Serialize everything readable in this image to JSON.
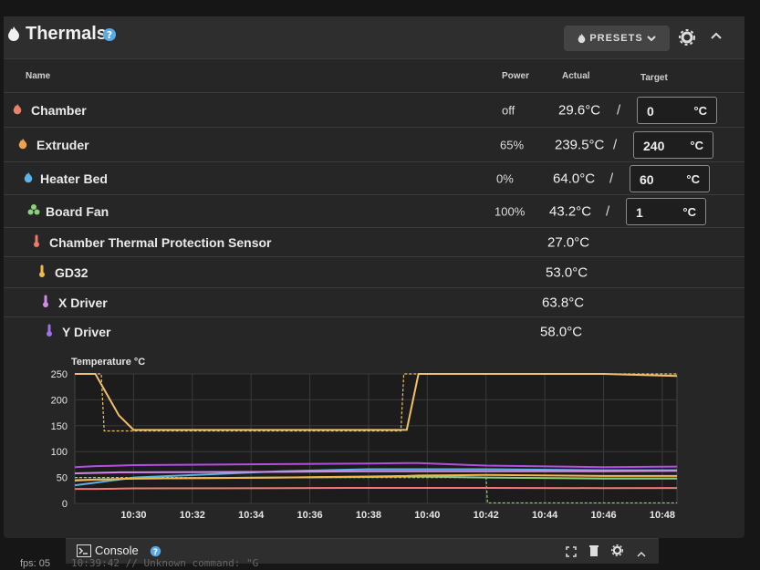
{
  "header": {
    "title": "Thermals",
    "presets_label": "PRESETS"
  },
  "table": {
    "columns": {
      "name": "Name",
      "power": "Power",
      "actual": "Actual",
      "target": "Target"
    },
    "heaters": [
      {
        "name": "Chamber",
        "power": "off",
        "actual": "29.6°C",
        "target": "0",
        "unit": "°C",
        "icon": "flame-icon",
        "color": "#e8836a"
      },
      {
        "name": "Extruder",
        "power": "65%",
        "actual": "239.5°C",
        "target": "240",
        "unit": "°C",
        "icon": "flame-icon",
        "color": "#f0a24a"
      },
      {
        "name": "Heater Bed",
        "power": "0%",
        "actual": "64.0°C",
        "target": "60",
        "unit": "°C",
        "icon": "flame-icon",
        "color": "#5ab4e8"
      },
      {
        "name": "Board Fan",
        "power": "100%",
        "actual": "43.2°C",
        "target": "1",
        "unit": "°C",
        "icon": "fan-icon",
        "color": "#8bd07a"
      }
    ],
    "sensors": [
      {
        "name": "Chamber Thermal Protection Sensor",
        "actual": "27.0°C",
        "icon": "thermometer-icon",
        "color": "#f07a6a"
      },
      {
        "name": "GD32",
        "actual": "53.0°C",
        "icon": "thermometer-icon",
        "color": "#f2b84a"
      },
      {
        "name": "X Driver",
        "actual": "63.8°C",
        "icon": "thermometer-icon",
        "color": "#d48ae8"
      },
      {
        "name": "Y Driver",
        "actual": "58.0°C",
        "icon": "thermometer-icon",
        "color": "#a070e8"
      }
    ]
  },
  "chart_data": {
    "type": "line",
    "title": "",
    "ylabel": "Temperature °C",
    "xlabel": "",
    "ylim": [
      0,
      250
    ],
    "yticks": [
      0,
      50,
      100,
      150,
      200,
      250
    ],
    "xticks": [
      "10:30",
      "10:32",
      "10:34",
      "10:36",
      "10:38",
      "10:40",
      "10:42",
      "10:44",
      "10:46",
      "10:48"
    ],
    "x": [
      "10:28",
      "10:28.7",
      "10:29.5",
      "10:30",
      "10:35",
      "10:38",
      "10:39.3",
      "10:39.7",
      "10:42",
      "10:46",
      "10:48.5"
    ],
    "series": [
      {
        "color": "#f2c068",
        "values": [
          250,
          250,
          170,
          142,
          142,
          142,
          142,
          250,
          250,
          250,
          246
        ]
      },
      {
        "color": "#b24ee0",
        "values": [
          70,
          72,
          73,
          74,
          76,
          77,
          78,
          78,
          73,
          70,
          71
        ]
      },
      {
        "color": "#5ab4e8",
        "values": [
          35,
          40,
          46,
          50,
          62,
          66,
          66,
          66,
          66,
          64,
          64
        ]
      },
      {
        "color": "#8bd07a",
        "values": [
          44,
          46,
          47,
          48,
          50,
          51,
          52,
          52,
          50,
          48,
          48
        ]
      },
      {
        "color": "#f2b84a",
        "values": [
          45,
          46,
          47,
          48,
          50,
          52,
          53,
          54,
          55,
          53,
          53
        ]
      },
      {
        "color": "#f07a6a",
        "values": [
          28,
          28,
          28.5,
          29,
          29.5,
          30,
          30,
          30,
          30,
          29.5,
          29.6
        ]
      },
      {
        "color": "#d48ae8",
        "values": [
          58,
          59,
          60,
          60,
          61,
          62,
          62,
          62,
          62,
          62,
          63
        ]
      }
    ],
    "targets": [
      {
        "color": "#f2c068",
        "dashed": true,
        "x": [
          "10:28",
          "10:28.9",
          "10:29",
          "10:39.1",
          "10:39.2",
          "10:48.5"
        ],
        "values": [
          250,
          250,
          140,
          140,
          250,
          250
        ]
      },
      {
        "color": "#8bd07a",
        "dashed": true,
        "x": [
          "10:28",
          "10:42",
          "10:42.05",
          "10:48.5"
        ],
        "values": [
          50,
          50,
          1,
          1
        ]
      }
    ]
  },
  "console": {
    "label": "Console"
  },
  "footer": {
    "fps": "fps: 05",
    "log_line": "10:39:42  // Unknown command: \"G"
  }
}
